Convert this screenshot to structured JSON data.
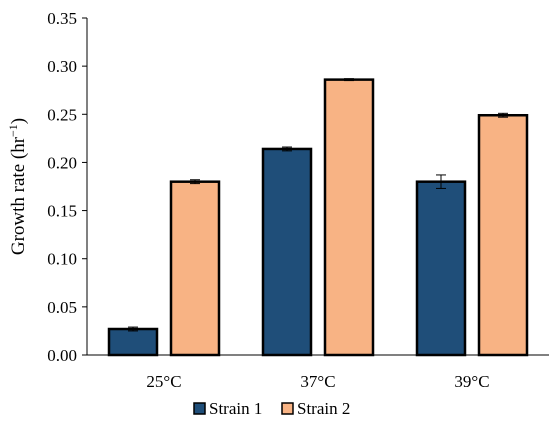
{
  "chart_data": {
    "type": "bar",
    "title": "",
    "xlabel": "",
    "ylabel": "Growth rate (hr",
    "ylabel_superscript": "−1",
    "ylabel_suffix": ")",
    "ylim": [
      0,
      0.35
    ],
    "yticks": [
      "0.00",
      "0.05",
      "0.10",
      "0.15",
      "0.20",
      "0.25",
      "0.30",
      "0.35"
    ],
    "categories": [
      "25°C",
      "37°C",
      "39°C"
    ],
    "series": [
      {
        "name": "Strain 1",
        "color": "#1f4e79",
        "values": [
          0.027,
          0.214,
          0.18
        ],
        "errors": [
          0.002,
          0.002,
          0.007
        ]
      },
      {
        "name": "Strain 2",
        "color": "#f8b384",
        "values": [
          0.18,
          0.286,
          0.249
        ],
        "errors": [
          0.002,
          0.001,
          0.002
        ]
      }
    ],
    "grid": false,
    "legend_position": "bottom"
  }
}
